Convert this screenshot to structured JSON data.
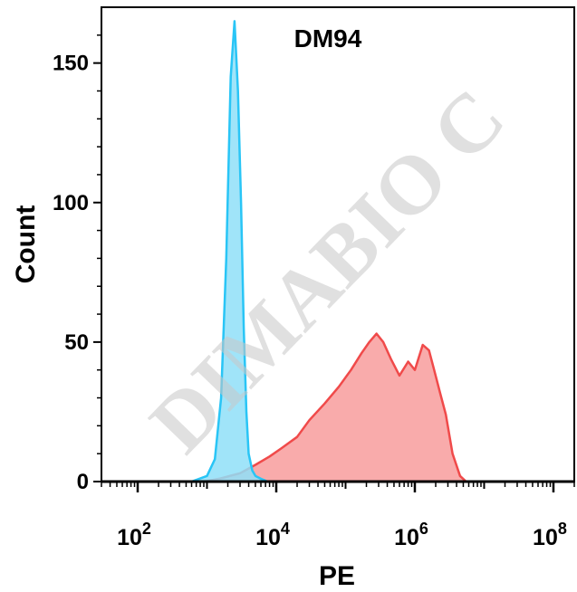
{
  "chart_data": {
    "type": "area",
    "title": "DM94",
    "xlabel": "PE",
    "ylabel": "Count",
    "xscale": "log",
    "xlim": [
      30,
      200000000
    ],
    "ylim": [
      0,
      170
    ],
    "x_ticks": [
      {
        "base": "10",
        "exp": "2"
      },
      {
        "base": "10",
        "exp": "4"
      },
      {
        "base": "10",
        "exp": "6"
      },
      {
        "base": "10",
        "exp": "8"
      }
    ],
    "y_ticks": [
      "0",
      "50",
      "100",
      "150"
    ],
    "watermark": "DIMABIO C",
    "series": [
      {
        "color": "#29c5f6",
        "fill": "#8fdff8",
        "x": [
          30,
          600,
          1000,
          1300,
          1600,
          1900,
          2200,
          2500,
          2800,
          3100,
          3400,
          3700,
          4000,
          4500,
          5000,
          6000,
          7500,
          10000,
          20000,
          1000000,
          200000000
        ],
        "y": [
          0,
          0,
          2,
          8,
          30,
          80,
          145,
          165,
          140,
          100,
          55,
          25,
          10,
          4,
          2,
          1,
          0,
          0,
          0,
          0,
          0
        ]
      },
      {
        "color": "#f04a4a",
        "fill": "#f89c9c",
        "x": [
          30,
          900,
          1500,
          3000,
          5000,
          8000,
          12000,
          20000,
          30000,
          50000,
          80000,
          120000,
          170000,
          220000,
          280000,
          350000,
          450000,
          600000,
          800000,
          1000000,
          1300000,
          1600000,
          1900000,
          2300000,
          2800000,
          3500000,
          4500000,
          5500000,
          200000000
        ],
        "y": [
          0,
          0,
          1,
          3,
          6,
          9,
          12,
          16,
          22,
          28,
          34,
          40,
          46,
          50,
          53,
          50,
          44,
          38,
          43,
          40,
          49,
          47,
          40,
          32,
          24,
          10,
          2,
          0,
          0
        ]
      }
    ]
  }
}
